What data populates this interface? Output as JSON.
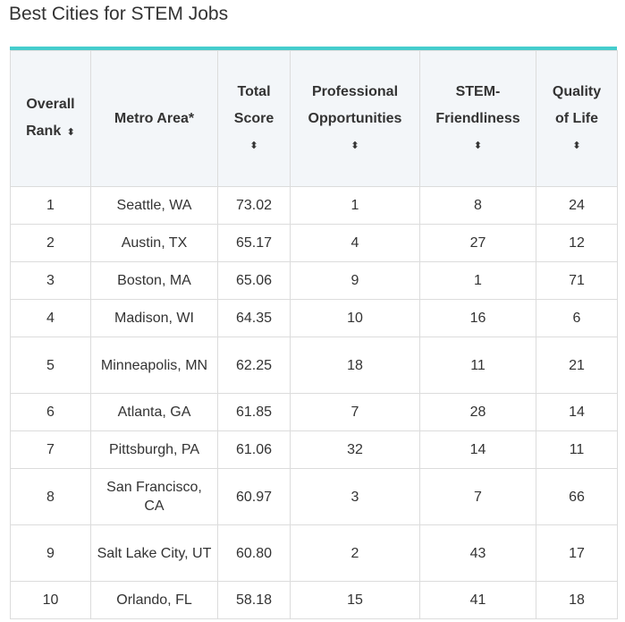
{
  "title": "Best Cities for STEM Jobs",
  "columns": [
    {
      "line1": "Overall",
      "line2": "Rank",
      "sort_inline": true
    },
    {
      "line1": "Metro Area*",
      "line2": "",
      "sort_inline": false
    },
    {
      "line1": "Total",
      "line2": "Score",
      "sort_inline": false
    },
    {
      "line1": "Professional",
      "line2": "Opportunities",
      "sort_inline": false
    },
    {
      "line1": "STEM-",
      "line2": "Friendliness",
      "sort_inline": false
    },
    {
      "line1": "Quality",
      "line2": "of Life",
      "sort_inline": false
    }
  ],
  "sort_glyph": "▲▼",
  "rows": [
    {
      "rank": "1",
      "metro": "Seattle, WA",
      "score": "73.02",
      "prof": "1",
      "stem": "8",
      "qol": "24",
      "tall": false
    },
    {
      "rank": "2",
      "metro": "Austin, TX",
      "score": "65.17",
      "prof": "4",
      "stem": "27",
      "qol": "12",
      "tall": false
    },
    {
      "rank": "3",
      "metro": "Boston, MA",
      "score": "65.06",
      "prof": "9",
      "stem": "1",
      "qol": "71",
      "tall": false
    },
    {
      "rank": "4",
      "metro": "Madison, WI",
      "score": "64.35",
      "prof": "10",
      "stem": "16",
      "qol": "6",
      "tall": false
    },
    {
      "rank": "5",
      "metro": "Minneapolis, MN",
      "score": "62.25",
      "prof": "18",
      "stem": "11",
      "qol": "21",
      "tall": true
    },
    {
      "rank": "6",
      "metro": "Atlanta, GA",
      "score": "61.85",
      "prof": "7",
      "stem": "28",
      "qol": "14",
      "tall": false
    },
    {
      "rank": "7",
      "metro": "Pittsburgh, PA",
      "score": "61.06",
      "prof": "32",
      "stem": "14",
      "qol": "11",
      "tall": false
    },
    {
      "rank": "8",
      "metro": "San Francisco, CA",
      "score": "60.97",
      "prof": "3",
      "stem": "7",
      "qol": "66",
      "tall": true
    },
    {
      "rank": "9",
      "metro": "Salt Lake City, UT",
      "score": "60.80",
      "prof": "2",
      "stem": "43",
      "qol": "17",
      "tall": true
    },
    {
      "rank": "10",
      "metro": "Orlando, FL",
      "score": "58.18",
      "prof": "15",
      "stem": "41",
      "qol": "18",
      "tall": false
    }
  ]
}
